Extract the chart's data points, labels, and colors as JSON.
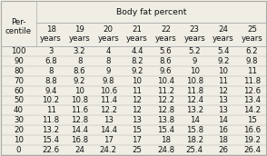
{
  "title": "Body fat percent",
  "col_header_line1": [
    "18",
    "19",
    "20",
    "21",
    "22",
    "23",
    "24",
    "25"
  ],
  "col_header_line2": [
    "years",
    "years",
    "years",
    "years",
    "years",
    "years",
    "years",
    "years"
  ],
  "percentiles": [
    100,
    90,
    80,
    70,
    60,
    50,
    40,
    30,
    20,
    10,
    0
  ],
  "table_data": [
    [
      3,
      3.2,
      4,
      4.4,
      5.6,
      5.2,
      5.4,
      6.2
    ],
    [
      6.8,
      8,
      8,
      8.2,
      8.6,
      9,
      9.2,
      9.8
    ],
    [
      8,
      8.6,
      9,
      9.2,
      9.6,
      10,
      10,
      11
    ],
    [
      8.8,
      9.2,
      9.8,
      10,
      10.4,
      10.8,
      11,
      11.8
    ],
    [
      9.4,
      10,
      10.6,
      11,
      11.2,
      11.8,
      12,
      12.6
    ],
    [
      10.2,
      10.8,
      11.4,
      12,
      12.2,
      12.4,
      13,
      13.4
    ],
    [
      11,
      11.6,
      12.2,
      12,
      12.8,
      13.2,
      13,
      14.2
    ],
    [
      11.8,
      12.8,
      13,
      13,
      13.8,
      14,
      14,
      15
    ],
    [
      13.2,
      14.4,
      14.4,
      15,
      15.4,
      15.8,
      16,
      16.6
    ],
    [
      15.4,
      16.8,
      17,
      17,
      18,
      18.2,
      18,
      19.2
    ],
    [
      22.6,
      24,
      24.2,
      25,
      24.8,
      25.4,
      26,
      26.4
    ]
  ],
  "bg_color": "#f0ede4",
  "line_color": "#aaaaaa",
  "text_color": "#111111",
  "font_size": 6.2
}
